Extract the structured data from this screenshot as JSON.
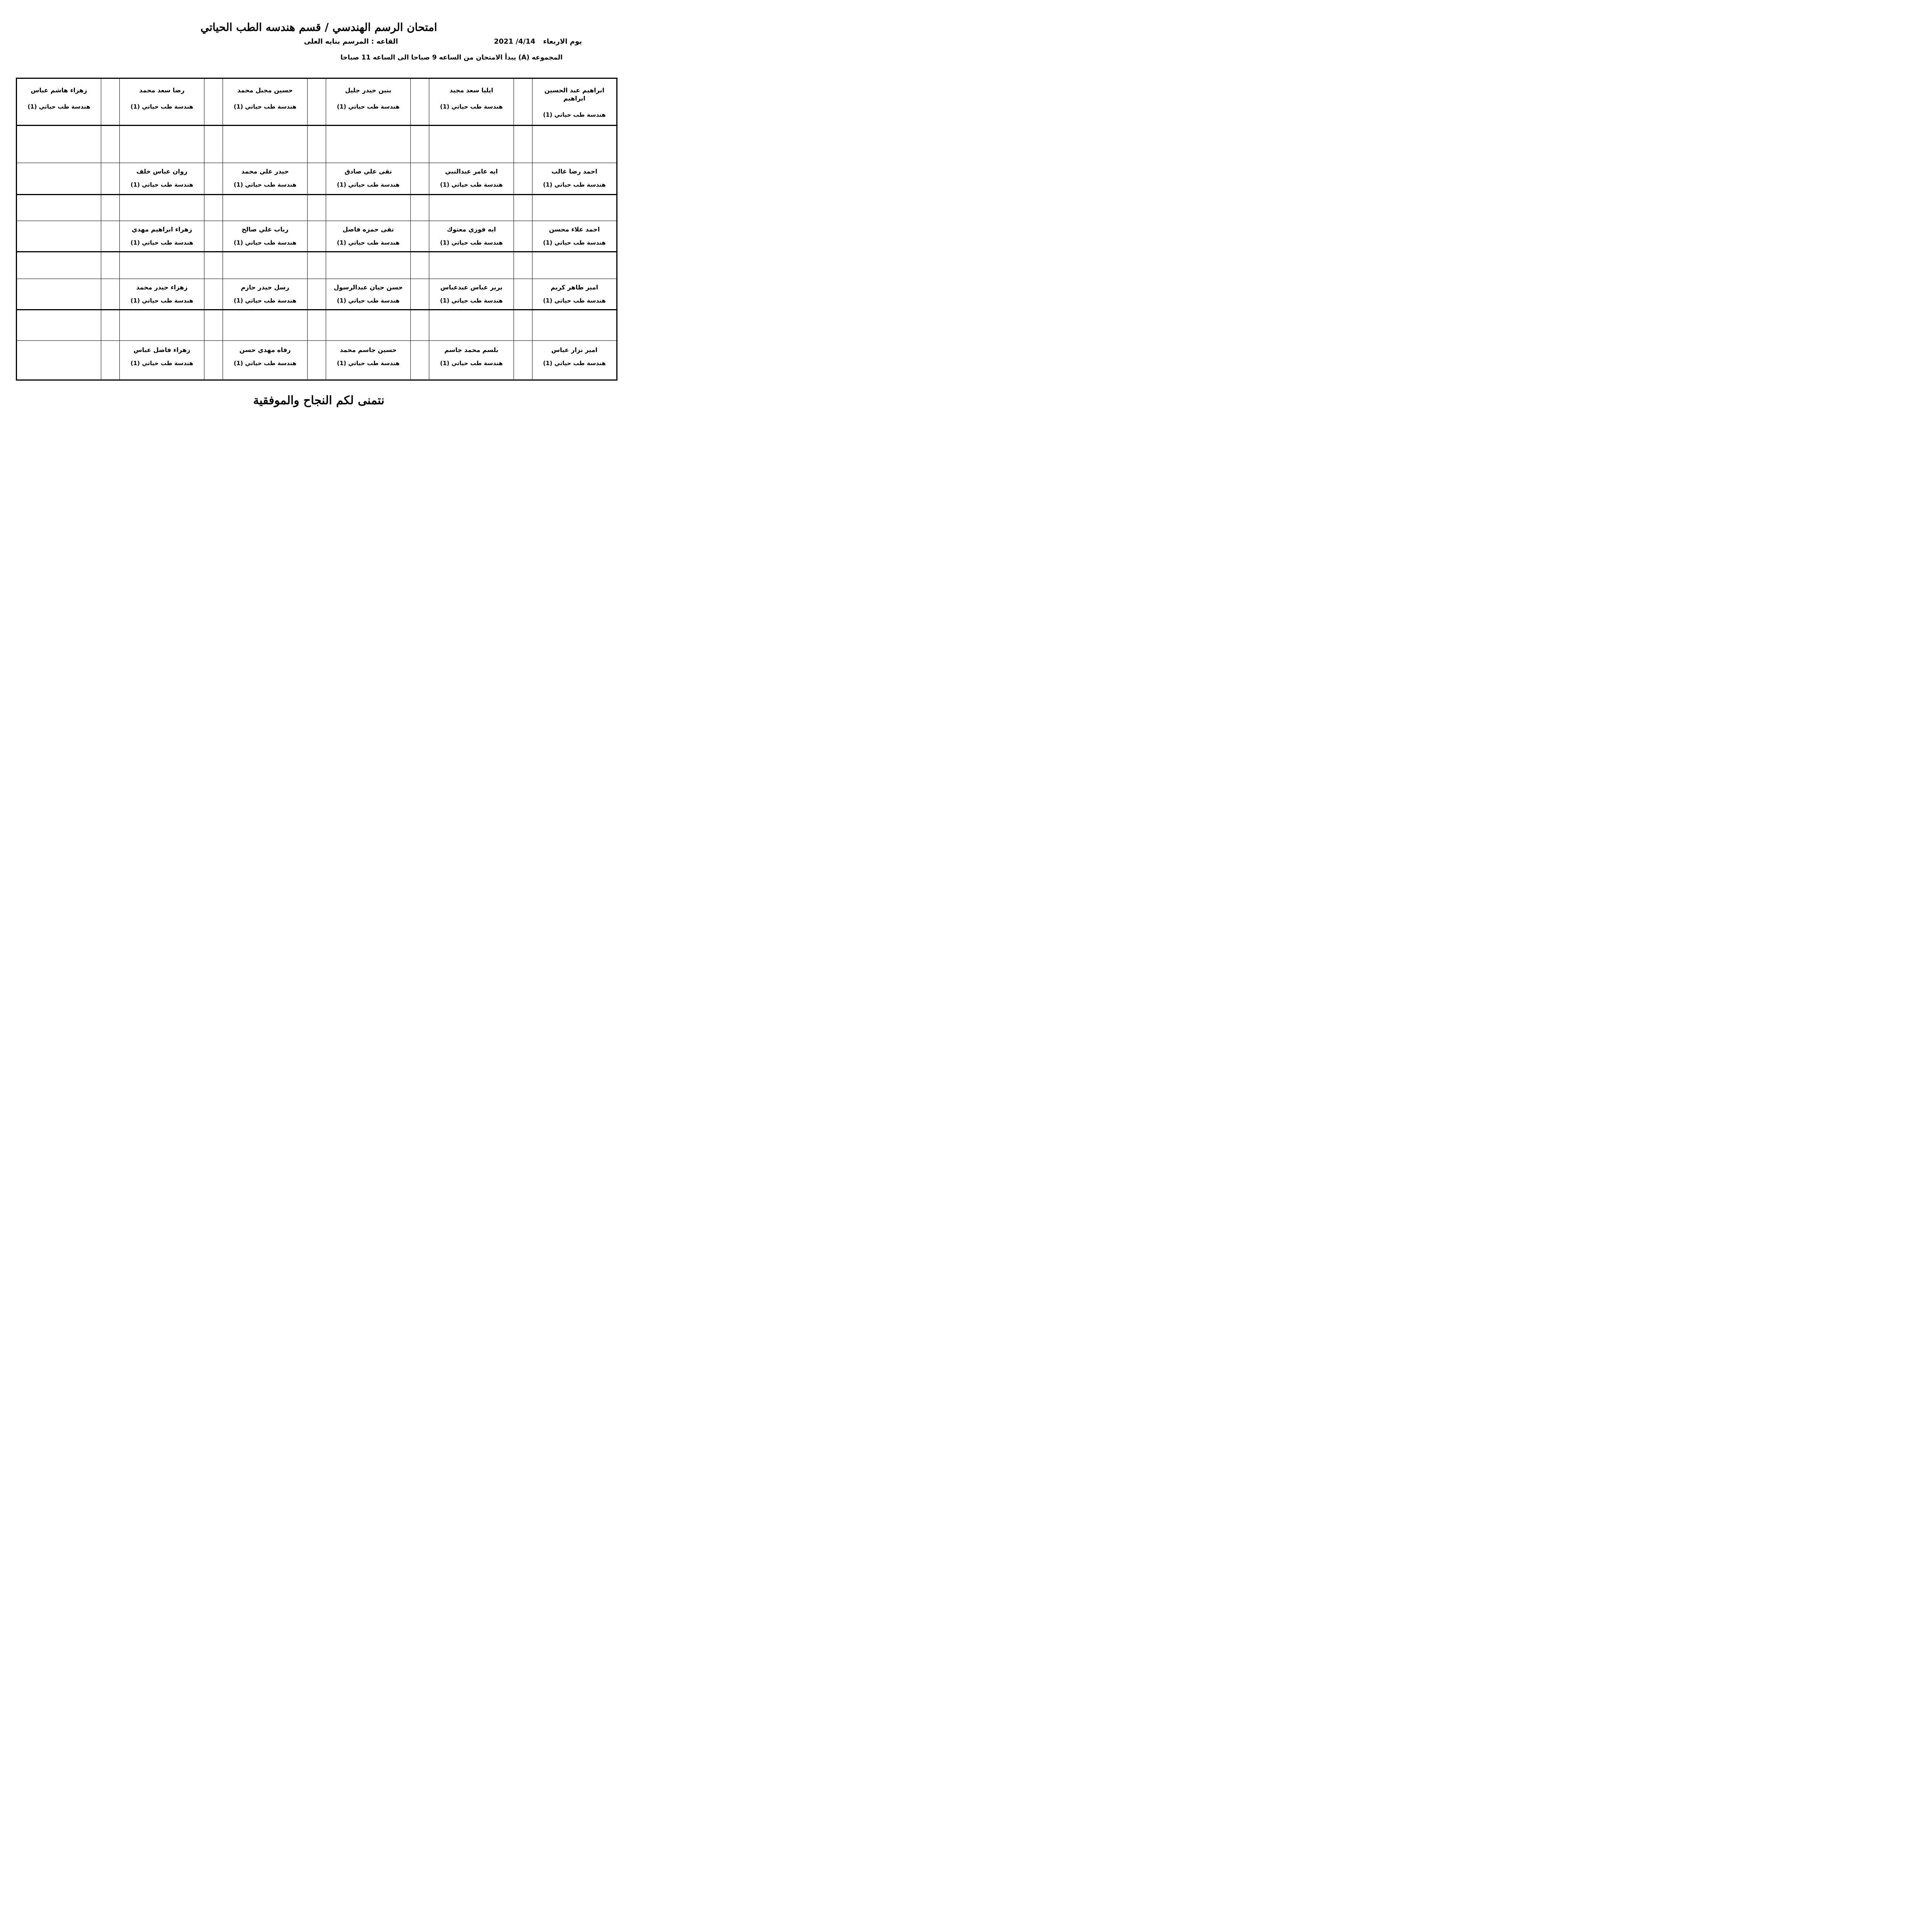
{
  "page": {
    "title": "امتحان الرسم الهندسي / قسم هندسه الطب الحياتي",
    "date_label": "يوم الاربعاء",
    "date_value": "2021 /4/14",
    "hall_label": "القاعه : المرسم بنايه العلى",
    "group_line": "المجموعه  (A) يبدأ الامتحان من الساعه 9 صباحا الى الساعه 11 صباحا",
    "footer": "نتمنى لكم النجاح والموفقية"
  },
  "course_label": "هندسة طب حياتي (1)",
  "table": {
    "rows": [
      {
        "type": "names",
        "cells": [
          "ابراهيم عبد الحسين ابراهيم",
          "ايليا سعد مجيد",
          "بنين حيدر جليل",
          "حسين مجبل محمد",
          "رضا سعد محمد",
          "زهراء هاشم عباس"
        ]
      },
      {
        "type": "empty",
        "cells": [
          null,
          null,
          null,
          null,
          null,
          null
        ]
      },
      {
        "type": "names",
        "cells": [
          "احمد رضا غالب",
          "ايه عامر عبدالنبي",
          "تقى علي صادق",
          "حيدر علي محمد",
          "روان عباس خلف",
          null
        ]
      },
      {
        "type": "empty",
        "cells": [
          null,
          null,
          null,
          null,
          null,
          null
        ]
      },
      {
        "type": "names",
        "cells": [
          "احمد علاء محسن",
          "ايه فوزي معتوك",
          "تقى حمزه فاضل",
          "رباب علي صالح",
          "زهراء ابراهيم مهدي",
          null
        ]
      },
      {
        "type": "empty",
        "cells": [
          null,
          null,
          null,
          null,
          null,
          null
        ]
      },
      {
        "type": "names",
        "cells": [
          "امير طاهر كريم",
          "برير عباس عبدعباس",
          "حسن حيان عبدالرسول",
          "رسل حيدر حازم",
          "زهزاء حيدر محمد",
          null
        ]
      },
      {
        "type": "empty",
        "cells": [
          null,
          null,
          null,
          null,
          null,
          null
        ]
      },
      {
        "type": "names",
        "cells": [
          "امير نزار عباس",
          "بلسم محمد جاسم",
          "حسين جاسم محمد",
          "رفاه مهدي حسن",
          "زهراء فاضل عباس",
          null
        ]
      }
    ]
  }
}
